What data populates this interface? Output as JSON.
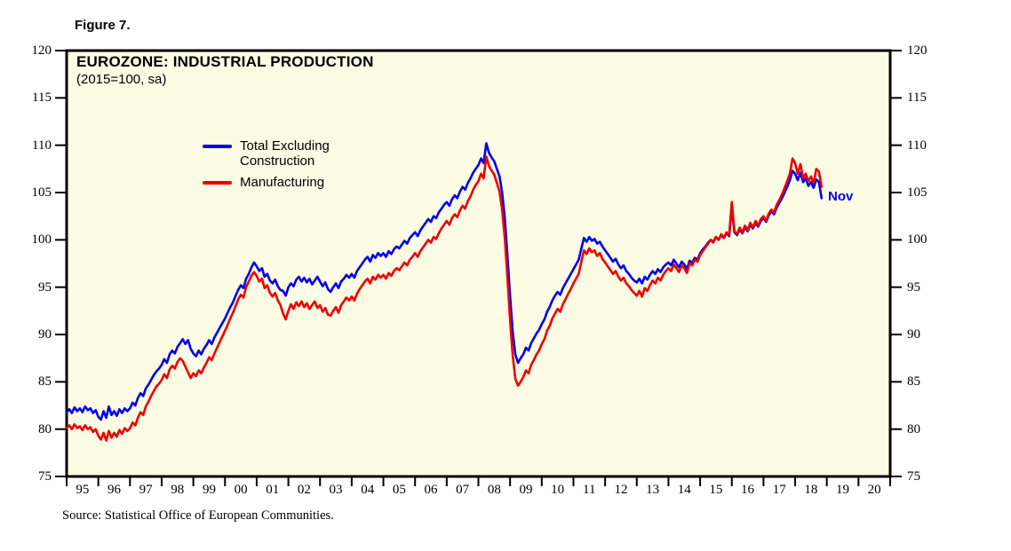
{
  "figure_label": "Figure 7.",
  "source": "Source: Statistical Office of European Communities.",
  "colors": {
    "page_bg": "#FFFFFF",
    "plot_bg": "#FCFBE4",
    "frame": "#000000",
    "blue": "#0000EE",
    "red": "#EE0000"
  },
  "chart_data": {
    "type": "line",
    "title": "EUROZONE: INDUSTRIAL PRODUCTION",
    "subtitle": "(2015=100, sa)",
    "grid": false,
    "legend_position": "inside-top-left",
    "ylim": [
      75,
      120
    ],
    "yticks": [
      75,
      80,
      85,
      90,
      95,
      100,
      105,
      110,
      115,
      120
    ],
    "x_start_year": 1995,
    "x_end_year": 2021,
    "xticklabels": [
      "95",
      "96",
      "97",
      "98",
      "99",
      "00",
      "01",
      "02",
      "03",
      "04",
      "05",
      "06",
      "07",
      "08",
      "09",
      "10",
      "11",
      "12",
      "13",
      "14",
      "15",
      "16",
      "17",
      "18",
      "19",
      "20"
    ],
    "annotation": {
      "text": "Nov",
      "color": "#0000EE",
      "month": "2018-11"
    },
    "legend": [
      {
        "label": "Total Excluding Construction",
        "color": "#0000EE"
      },
      {
        "label": "Manufacturing",
        "color": "#EE0000"
      }
    ],
    "series": [
      {
        "name": "Total Excluding Construction",
        "color": "#0000EE",
        "start": "1995-01",
        "end": "2018-11",
        "frequency": "monthly",
        "values": [
          81.8,
          82.1,
          81.7,
          82.3,
          81.9,
          82.2,
          81.8,
          82.4,
          82.0,
          82.2,
          81.7,
          82.0,
          81.3,
          81.0,
          81.9,
          81.2,
          82.4,
          81.5,
          81.9,
          81.4,
          82.1,
          81.7,
          82.2,
          81.9,
          82.2,
          82.8,
          82.5,
          83.3,
          83.8,
          83.5,
          84.3,
          84.7,
          85.2,
          85.7,
          86.1,
          86.4,
          86.8,
          87.4,
          87.0,
          87.9,
          88.3,
          88.0,
          88.7,
          89.1,
          89.5,
          89.0,
          89.4,
          88.5,
          88.0,
          87.7,
          88.3,
          87.9,
          88.5,
          88.9,
          89.4,
          89.0,
          89.7,
          90.2,
          90.7,
          91.2,
          91.7,
          92.3,
          92.9,
          93.4,
          94.1,
          94.7,
          95.2,
          94.9,
          95.9,
          96.4,
          97.1,
          97.6,
          97.2,
          96.7,
          97.0,
          96.1,
          96.4,
          95.7,
          95.4,
          95.8,
          95.1,
          94.7,
          94.6,
          94.1,
          95.0,
          95.4,
          95.1,
          95.8,
          96.1,
          95.6,
          96.0,
          95.5,
          95.9,
          95.3,
          95.7,
          96.1,
          95.6,
          95.1,
          95.5,
          94.8,
          94.5,
          95.0,
          95.4,
          94.9,
          95.6,
          95.9,
          96.3,
          96.0,
          96.4,
          96.0,
          96.7,
          97.1,
          97.5,
          97.9,
          98.2,
          97.7,
          98.4,
          98.1,
          98.6,
          98.3,
          98.6,
          98.2,
          98.8,
          98.5,
          99.0,
          99.3,
          99.1,
          99.5,
          99.9,
          99.6,
          100.2,
          100.5,
          100.8,
          100.4,
          101.0,
          101.4,
          101.8,
          102.2,
          101.9,
          102.5,
          102.3,
          102.9,
          103.3,
          103.7,
          104.0,
          103.6,
          104.3,
          104.7,
          104.4,
          105.1,
          105.6,
          105.3,
          106.0,
          106.5,
          107.1,
          107.5,
          107.9,
          108.6,
          108.1,
          110.2,
          109.2,
          108.7,
          108.3,
          107.5,
          106.7,
          105.0,
          102.3,
          98.3,
          94.0,
          90.3,
          87.9,
          87.0,
          87.5,
          87.9,
          88.6,
          88.3,
          89.1,
          89.6,
          90.1,
          90.5,
          91.1,
          91.6,
          92.4,
          92.9,
          93.6,
          94.1,
          94.5,
          94.2,
          94.9,
          95.4,
          95.9,
          96.4,
          96.9,
          97.4,
          97.9,
          99.1,
          100.2,
          99.8,
          100.3,
          99.9,
          100.1,
          99.6,
          99.8,
          99.3,
          98.9,
          98.5,
          98.1,
          97.7,
          98.0,
          97.4,
          97.0,
          97.3,
          96.7,
          96.4,
          96.0,
          95.7,
          95.5,
          95.9,
          95.4,
          96.1,
          95.8,
          96.3,
          96.7,
          96.4,
          96.9,
          96.6,
          97.1,
          97.4,
          97.6,
          97.3,
          97.9,
          97.5,
          97.1,
          97.7,
          97.4,
          96.9,
          97.8,
          97.6,
          98.1,
          97.9,
          98.6,
          99.0,
          99.3,
          99.7,
          100.0,
          99.8,
          100.3,
          100.0,
          100.5,
          100.2,
          100.7,
          100.4,
          103.4,
          100.8,
          100.5,
          101.1,
          100.7,
          101.3,
          100.9,
          101.6,
          101.2,
          101.8,
          101.4,
          102.0,
          102.3,
          101.9,
          102.6,
          103.0,
          102.7,
          103.4,
          103.9,
          104.4,
          105.0,
          105.6,
          106.3,
          107.3,
          107.0,
          106.3,
          107.1,
          106.1,
          106.5,
          105.7,
          106.1,
          105.5,
          106.4,
          106.1,
          104.4
        ]
      },
      {
        "name": "Manufacturing",
        "color": "#EE0000",
        "start": "1995-01",
        "end": "2018-11",
        "frequency": "monthly",
        "values": [
          80.1,
          80.4,
          80.0,
          80.5,
          80.1,
          80.3,
          79.9,
          80.4,
          80.0,
          80.2,
          79.7,
          80.0,
          79.3,
          78.9,
          79.6,
          78.8,
          79.8,
          79.1,
          79.6,
          79.2,
          79.9,
          79.5,
          80.1,
          79.8,
          80.1,
          80.7,
          80.4,
          81.2,
          81.8,
          81.5,
          82.4,
          82.9,
          83.5,
          84.0,
          84.5,
          84.8,
          85.2,
          85.8,
          85.4,
          86.3,
          86.7,
          86.4,
          87.1,
          87.5,
          87.2,
          86.6,
          86.0,
          85.4,
          85.9,
          85.6,
          86.2,
          85.9,
          86.5,
          87.0,
          87.6,
          87.3,
          88.0,
          88.6,
          89.2,
          89.8,
          90.4,
          91.0,
          91.7,
          92.3,
          93.0,
          93.7,
          94.2,
          93.9,
          95.0,
          95.6,
          96.2,
          96.6,
          96.2,
          95.6,
          95.9,
          94.9,
          95.2,
          94.4,
          94.0,
          94.4,
          93.6,
          93.1,
          92.2,
          91.6,
          92.5,
          93.2,
          92.7,
          93.4,
          93.0,
          93.5,
          92.9,
          93.3,
          92.7,
          93.1,
          93.5,
          92.8,
          93.1,
          92.4,
          92.8,
          92.1,
          92.0,
          92.5,
          92.9,
          92.3,
          93.1,
          93.5,
          93.9,
          93.6,
          94.0,
          93.6,
          94.3,
          94.8,
          95.2,
          95.6,
          95.9,
          95.4,
          96.1,
          95.8,
          96.3,
          96.0,
          96.3,
          95.9,
          96.5,
          96.2,
          96.7,
          97.0,
          96.8,
          97.2,
          97.6,
          97.3,
          97.9,
          98.2,
          98.6,
          98.2,
          98.8,
          99.2,
          99.6,
          100.0,
          99.7,
          100.3,
          100.1,
          100.7,
          101.2,
          101.6,
          102.0,
          101.6,
          102.3,
          102.7,
          102.4,
          103.1,
          103.6,
          103.3,
          104.1,
          104.6,
          105.3,
          105.8,
          106.2,
          107.0,
          106.5,
          108.8,
          107.8,
          107.3,
          106.9,
          106.0,
          105.1,
          103.2,
          100.2,
          96.0,
          91.5,
          87.8,
          85.3,
          84.6,
          85.0,
          85.5,
          86.2,
          85.9,
          86.8,
          87.3,
          87.9,
          88.3,
          89.0,
          89.5,
          90.4,
          90.9,
          91.7,
          92.2,
          92.7,
          92.4,
          93.2,
          93.7,
          94.3,
          94.8,
          95.4,
          95.9,
          96.4,
          97.7,
          98.9,
          98.5,
          99.1,
          98.7,
          98.9,
          98.3,
          98.6,
          98.0,
          97.6,
          97.2,
          96.8,
          96.4,
          96.7,
          96.1,
          95.7,
          96.0,
          95.4,
          95.1,
          94.7,
          94.4,
          94.1,
          94.6,
          94.0,
          94.9,
          94.6,
          95.2,
          95.7,
          95.4,
          96.0,
          95.7,
          96.3,
          96.7,
          97.0,
          96.7,
          97.4,
          97.0,
          96.6,
          97.3,
          97.0,
          96.5,
          97.5,
          97.3,
          97.9,
          97.7,
          98.4,
          98.8,
          99.2,
          99.6,
          100.0,
          99.7,
          100.3,
          100.0,
          100.6,
          100.2,
          100.8,
          100.5,
          104.0,
          100.9,
          100.6,
          101.3,
          100.8,
          101.5,
          101.0,
          101.8,
          101.3,
          102.0,
          101.5,
          102.2,
          102.5,
          102.0,
          102.8,
          103.2,
          102.9,
          103.7,
          104.2,
          104.8,
          105.5,
          106.2,
          107.0,
          108.6,
          108.1,
          107.0,
          108.0,
          106.5,
          107.0,
          106.2,
          106.7,
          106.0,
          107.5,
          107.2,
          105.6
        ]
      }
    ]
  }
}
